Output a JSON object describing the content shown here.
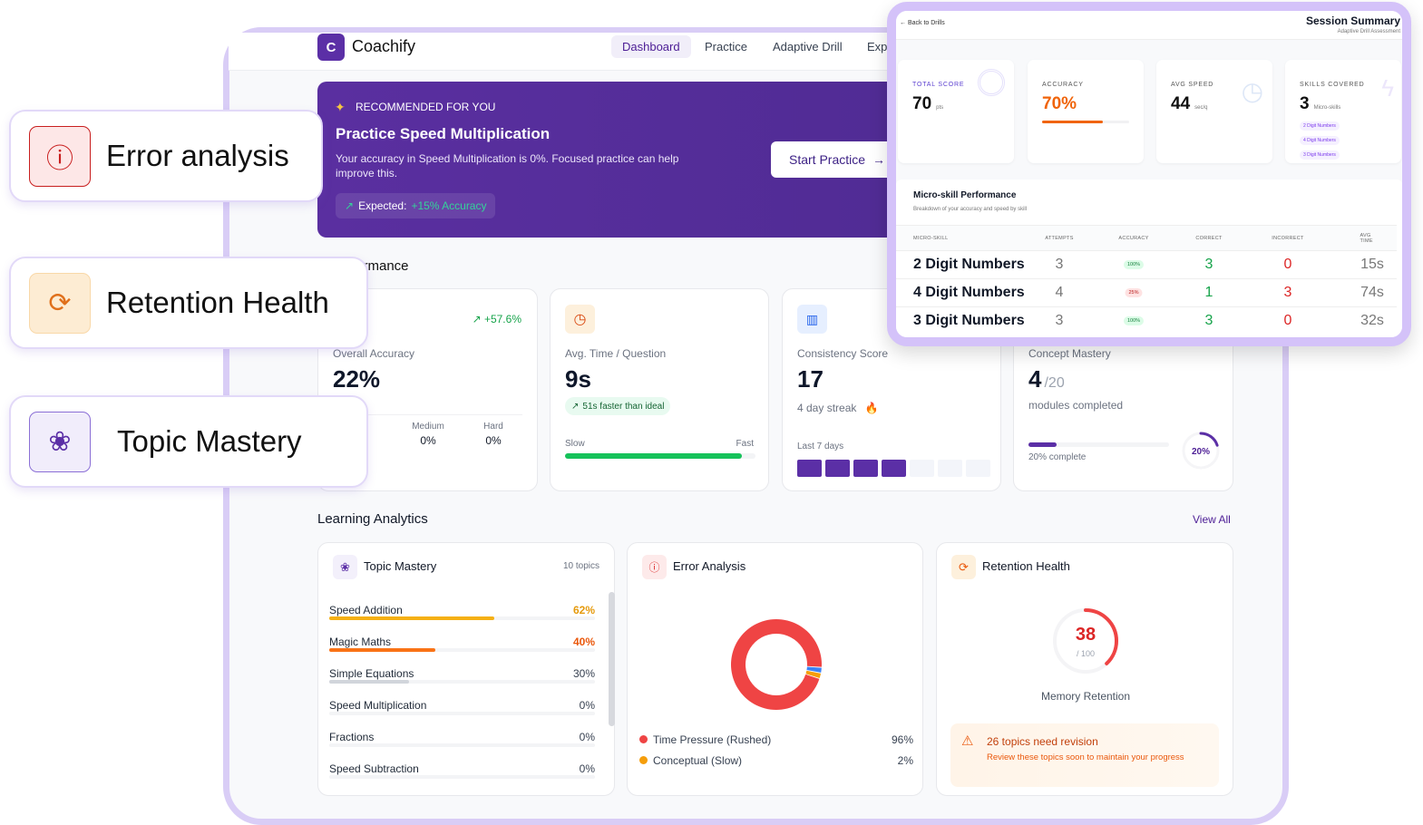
{
  "app": {
    "logo_letter": "C",
    "name": "Coachify",
    "nav": [
      "Dashboard",
      "Practice",
      "Adaptive Drill",
      "Exp"
    ],
    "active_nav": "Dashboard"
  },
  "banner": {
    "eyebrow": "RECOMMENDED FOR YOU",
    "title": "Practice Speed Multiplication",
    "body": "Your accuracy in Speed Multiplication is 0%. Focused practice can help improve this.",
    "expected_label": "Expected:",
    "expected_value": "+15% Accuracy",
    "cta": "Start Practice"
  },
  "performance": {
    "heading": "rformance",
    "accuracy": {
      "trend": "+57.6%",
      "label": "Overall Accuracy",
      "value": "22%",
      "levels": [
        {
          "label": "Medium",
          "value": "0%"
        },
        {
          "label": "Hard",
          "value": "0%"
        }
      ]
    },
    "time": {
      "label": "Avg. Time / Question",
      "value": "9s",
      "badge": "51s faster than ideal",
      "slow": "Slow",
      "fast": "Fast",
      "speed_fraction": 0.93
    },
    "consistency": {
      "label": "Consistency Score",
      "value": "17",
      "streak": "4 day streak",
      "last7": "Last 7 days",
      "days_active": [
        true,
        true,
        true,
        true,
        false,
        false,
        false
      ]
    },
    "concept": {
      "label": "Concept Mastery",
      "value": "4",
      "total": "/20",
      "sub": "modules completed",
      "progress_label": "20% complete",
      "ring": "20%",
      "fraction": 0.2
    }
  },
  "analytics": {
    "heading": "Learning Analytics",
    "view_all": "View All",
    "topic_mastery": {
      "title": "Topic Mastery",
      "count": "10 topics",
      "rows": [
        {
          "name": "Speed Addition",
          "pct": "62%",
          "value": 62,
          "color": "#f5b014",
          "text_color": "#e59a0c"
        },
        {
          "name": "Magic Maths",
          "pct": "40%",
          "value": 40,
          "color": "#f97316",
          "text_color": "#ea580c"
        },
        {
          "name": "Simple Equations",
          "pct": "30%",
          "value": 30,
          "color": "#d1d5db",
          "text_color": "#374151"
        },
        {
          "name": "Speed Multiplication",
          "pct": "0%",
          "value": 0,
          "color": "#d1d5db",
          "text_color": "#374151"
        },
        {
          "name": "Fractions",
          "pct": "0%",
          "value": 0,
          "color": "#d1d5db",
          "text_color": "#374151"
        },
        {
          "name": "Speed Subtraction",
          "pct": "0%",
          "value": 0,
          "color": "#d1d5db",
          "text_color": "#374151"
        }
      ]
    },
    "error_analysis": {
      "title": "Error Analysis",
      "segments": [
        {
          "label": "Time Pressure (Rushed)",
          "pct": "96%",
          "value": 96,
          "color": "#ef4444"
        },
        {
          "value": 2,
          "color": "#3b82f6"
        },
        {
          "label": "Conceptual (Slow)",
          "pct": "2%",
          "value": 2,
          "color": "#f59e0b"
        }
      ]
    },
    "retention": {
      "title": "Retention Health",
      "score": "38",
      "max": "/ 100",
      "value": 38,
      "label": "Memory Retention",
      "alert_title": "26 topics need revision",
      "alert_body": "Review these topics soon to maintain your progress"
    }
  },
  "callouts": [
    "Error analysis",
    "Retention Health",
    "Topic Mastery"
  ],
  "summary": {
    "back": "Back to Drills",
    "title": "Session Summary",
    "subtitle": "Adaptive Drill Assessment",
    "cards": [
      {
        "title": "TOTAL SCORE",
        "value": "70",
        "unit": "pts"
      },
      {
        "title": "ACCURACY",
        "value": "70%",
        "fraction": 0.7
      },
      {
        "title": "AVG SPEED",
        "value": "44",
        "unit": "sec/q"
      },
      {
        "title": "SKILLS COVERED",
        "value": "3",
        "unit": "Micro-skills",
        "chips": [
          "2 Digit Numbers",
          "4 Digit Numbers",
          "3 Digit Numbers"
        ]
      }
    ],
    "table_title": "Micro-skill Performance",
    "table_sub": "Breakdown of your accuracy and speed by skill",
    "columns": [
      "MICRO-SKILL",
      "ATTEMPTS",
      "ACCURACY",
      "CORRECT",
      "INCORRECT",
      "AVG TIME"
    ],
    "rows": [
      [
        "2 Digit Numbers",
        "3",
        "100%",
        "3",
        "0",
        "15s"
      ],
      [
        "4 Digit Numbers",
        "4",
        "25%",
        "1",
        "3",
        "74s"
      ],
      [
        "3 Digit Numbers",
        "3",
        "100%",
        "3",
        "0",
        "32s"
      ]
    ]
  }
}
